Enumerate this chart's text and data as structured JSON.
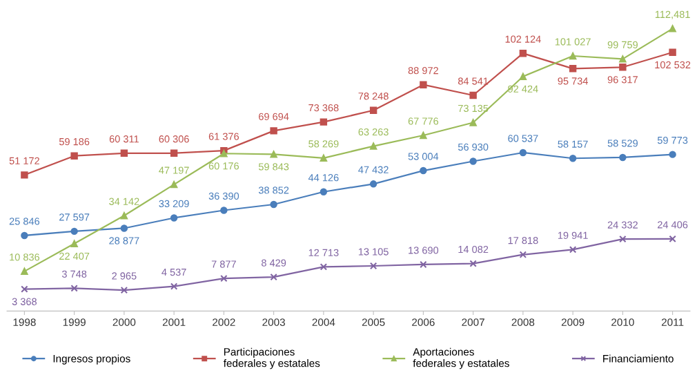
{
  "chart_data": {
    "type": "line",
    "categories": [
      "1998",
      "1999",
      "2000",
      "2001",
      "2002",
      "2003",
      "2004",
      "2005",
      "2006",
      "2007",
      "2008",
      "2009",
      "2010",
      "2011"
    ],
    "series": [
      {
        "name": "Ingresos propios",
        "color": "#4a7ebb",
        "marker": "circle",
        "values": [
          25846,
          27597,
          28877,
          33209,
          36390,
          38852,
          44126,
          47432,
          53004,
          56930,
          60537,
          58157,
          58529,
          59773
        ],
        "value_labels": [
          "25 846",
          "27 597",
          "28 877",
          "33 209",
          "36 390",
          "38 852",
          "44 126",
          "47 432",
          "53 004",
          "56 930",
          "60 537",
          "58 157",
          "58 529",
          "59 773"
        ]
      },
      {
        "name": "Participaciones\nfederales y estatales",
        "color": "#c0504d",
        "marker": "square",
        "values": [
          51172,
          59186,
          60311,
          60306,
          61376,
          69694,
          73368,
          78248,
          88972,
          84541,
          102124,
          95734,
          96317,
          102532
        ],
        "value_labels": [
          "51 172",
          "59 186",
          "60 311",
          "60 306",
          "61 376",
          "69 694",
          "73 368",
          "78 248",
          "88 972",
          "84 541",
          "102 124",
          "95 734",
          "96 317",
          "102 532"
        ]
      },
      {
        "name": "Aportaciones\nfederales y estatales",
        "color": "#9bbb59",
        "marker": "triangle",
        "values": [
          10836,
          22407,
          34142,
          47197,
          60176,
          59843,
          58269,
          63263,
          67776,
          73135,
          92424,
          101027,
          99759,
          112481
        ],
        "value_labels": [
          "10 836",
          "22 407",
          "34 142",
          "47 197",
          "60 176",
          "59 843",
          "58 269",
          "63 263",
          "67 776",
          "73 135",
          "92 424",
          "101 027",
          "99 759",
          "112,481"
        ]
      },
      {
        "name": "Financiamiento",
        "color": "#8064a2",
        "marker": "cross",
        "values": [
          3368,
          3748,
          2965,
          4537,
          7877,
          8429,
          12713,
          13105,
          13690,
          14082,
          17818,
          19941,
          24332,
          24406
        ],
        "value_labels": [
          "3 368",
          "3 748",
          "2 965",
          "4 537",
          "7 877",
          "8 429",
          "12 713",
          "13 105",
          "13 690",
          "14 082",
          "17 818",
          "19 941",
          "24 332",
          "24 406"
        ]
      }
    ],
    "legend": "bottom",
    "grid": false,
    "line_style": "solid"
  }
}
